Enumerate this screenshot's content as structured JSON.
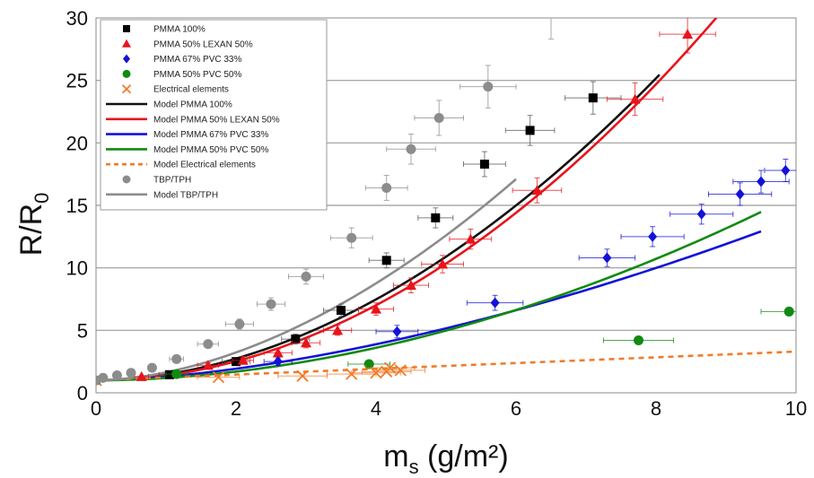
{
  "chart_data": {
    "type": "scatter",
    "title": "",
    "xlabel": "m",
    "xlabel_sub": "s",
    "xlabel_rest": " (g/m²)",
    "ylabel": "R/R",
    "ylabel_sub": "0",
    "xlim": [
      0,
      10
    ],
    "ylim": [
      0,
      30
    ],
    "xticks": [
      "0",
      "2",
      "4",
      "6",
      "8",
      "10"
    ],
    "yticks": [
      "0",
      "5",
      "10",
      "15",
      "20",
      "25",
      "30"
    ],
    "grid": "horizontal",
    "legend_position": "top-left",
    "series": [
      {
        "name": "PMMA 100%",
        "kind": "points",
        "marker": "square",
        "color": "#000000",
        "points": [
          [
            0.0,
            1.0
          ],
          [
            1.05,
            1.45
          ],
          [
            2.0,
            2.5
          ],
          [
            2.85,
            4.3
          ],
          [
            3.5,
            6.6
          ],
          [
            4.15,
            10.6
          ],
          [
            4.85,
            14.0
          ],
          [
            5.55,
            18.3
          ],
          [
            6.2,
            21.0
          ],
          [
            7.1,
            23.6
          ]
        ],
        "xerr": [
          0.1,
          0.15,
          0.2,
          0.2,
          0.25,
          0.25,
          0.25,
          0.3,
          0.35,
          0.4
        ],
        "yerr": [
          0,
          0.2,
          0.3,
          0.4,
          0.5,
          0.6,
          0.8,
          1.0,
          1.2,
          1.3
        ]
      },
      {
        "name": "PMMA 50% LEXAN 50%",
        "kind": "points",
        "marker": "triangle",
        "color": "#e8141b",
        "points": [
          [
            0.65,
            1.3
          ],
          [
            1.6,
            2.2
          ],
          [
            2.1,
            2.6
          ],
          [
            2.6,
            3.2
          ],
          [
            3.0,
            4.0
          ],
          [
            3.45,
            5.0
          ],
          [
            4.0,
            6.7
          ],
          [
            4.5,
            8.6
          ],
          [
            4.95,
            10.3
          ],
          [
            5.35,
            12.3
          ],
          [
            6.3,
            16.2
          ],
          [
            7.7,
            23.5
          ],
          [
            8.45,
            28.7
          ]
        ],
        "xerr": [
          0.1,
          0.15,
          0.15,
          0.2,
          0.2,
          0.2,
          0.25,
          0.25,
          0.3,
          0.3,
          0.35,
          0.4,
          0.4
        ],
        "yerr": [
          0,
          0.2,
          0.3,
          0.3,
          0.4,
          0.4,
          0.5,
          0.6,
          0.7,
          0.8,
          1.0,
          1.3,
          1.5
        ]
      },
      {
        "name": "PMMA 67% PVC 33%",
        "kind": "points",
        "marker": "diamond",
        "color": "#1212d8",
        "points": [
          [
            2.6,
            2.5
          ],
          [
            4.3,
            4.9
          ],
          [
            5.7,
            7.2
          ],
          [
            7.3,
            10.8
          ],
          [
            7.95,
            12.5
          ],
          [
            8.65,
            14.3
          ],
          [
            9.2,
            15.9
          ],
          [
            9.5,
            16.9
          ],
          [
            9.85,
            17.8
          ]
        ],
        "xerr": [
          0.2,
          0.3,
          0.4,
          0.4,
          0.45,
          0.45,
          0.45,
          0.4,
          0.3
        ],
        "yerr": [
          0.3,
          0.5,
          0.6,
          0.7,
          0.8,
          0.8,
          0.9,
          0.9,
          0.9
        ]
      },
      {
        "name": "PMMA 50% PVC 50%",
        "kind": "points",
        "marker": "circle",
        "color": "#118a11",
        "points": [
          [
            1.15,
            1.5
          ],
          [
            3.9,
            2.3
          ],
          [
            7.75,
            4.2
          ],
          [
            9.9,
            6.5
          ]
        ],
        "xerr": [
          0.15,
          0.3,
          0.5,
          0.4
        ],
        "yerr": [
          0.1,
          0.2,
          0.3,
          0.3
        ]
      },
      {
        "name": "Electrical elements",
        "kind": "points",
        "marker": "cross",
        "color": "#f07c2a",
        "points": [
          [
            0.0,
            1.0
          ],
          [
            1.75,
            1.25
          ],
          [
            2.95,
            1.35
          ],
          [
            3.65,
            1.5
          ],
          [
            4.0,
            1.6
          ],
          [
            4.15,
            1.7
          ],
          [
            4.2,
            2.0
          ],
          [
            4.35,
            1.8
          ]
        ],
        "xerr": [
          0,
          0.3,
          0.35,
          0.35,
          0.35,
          0.35,
          0.35,
          0.35
        ],
        "yerr": [
          0,
          0,
          0,
          0,
          0,
          0,
          0,
          0
        ]
      },
      {
        "name": "Model PMMA 100%",
        "kind": "line",
        "color": "#111111",
        "dash": "",
        "params": [
          1.9,
          0.465,
          8.05
        ]
      },
      {
        "name": "Model PMMA 50% LEXAN 50%",
        "kind": "line",
        "color": "#e8141b",
        "dash": "",
        "params": [
          1.98,
          0.386,
          9.65
        ]
      },
      {
        "name": "Model PMMA 67% PVC 33%",
        "kind": "line",
        "color": "#1212d8",
        "dash": "",
        "params": [
          1.64,
          0.297,
          9.5
        ]
      },
      {
        "name": "Model PMMA 50% PVC 50%",
        "kind": "line",
        "color": "#118a11",
        "dash": "",
        "params": [
          1.9,
          0.187,
          9.5
        ]
      },
      {
        "name": "Model Electrical elements",
        "kind": "line",
        "color": "#f07c2a",
        "dash": "6,5",
        "params": [
          1.0,
          0.23,
          10.0
        ]
      },
      {
        "name": "TBP/TPH",
        "kind": "points",
        "marker": "circle",
        "color": "#8c8c8c",
        "points": [
          [
            0.0,
            1.0
          ],
          [
            0.1,
            1.2
          ],
          [
            0.3,
            1.4
          ],
          [
            0.5,
            1.6
          ],
          [
            0.8,
            2.0
          ],
          [
            1.15,
            2.7
          ],
          [
            1.6,
            3.9
          ],
          [
            2.05,
            5.5
          ],
          [
            2.5,
            7.1
          ],
          [
            3.0,
            9.3
          ],
          [
            3.65,
            12.4
          ],
          [
            4.15,
            16.4
          ],
          [
            4.5,
            19.5
          ],
          [
            4.9,
            22.0
          ],
          [
            5.6,
            24.5
          ]
        ],
        "xerr": [
          0,
          0,
          0,
          0.05,
          0.05,
          0.1,
          0.15,
          0.2,
          0.2,
          0.25,
          0.3,
          0.3,
          0.35,
          0.35,
          0.4
        ],
        "yerr": [
          0,
          0,
          0,
          0,
          0.1,
          0.2,
          0.3,
          0.4,
          0.5,
          0.6,
          0.8,
          1.0,
          1.2,
          1.4,
          1.7
        ]
      },
      {
        "name": "Model TBP/TPH",
        "kind": "line",
        "color": "#8c8c8c",
        "dash": "",
        "params": [
          1.8,
          0.64,
          6.0
        ]
      }
    ],
    "extra_errorbar": {
      "x": 6.5,
      "y": 29.8,
      "yerr": 1.5,
      "color": "#aaaaaa"
    }
  }
}
